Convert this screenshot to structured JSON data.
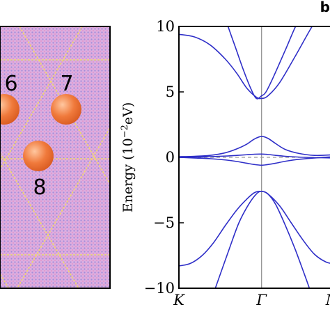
{
  "panel_label": "b",
  "lattice": {
    "site_labels": [
      "6",
      "7",
      "8"
    ],
    "colors": {
      "background": "#dcaee0",
      "grid": "#f2d86a",
      "atom": "#f07a3c",
      "atom_light": "#ffc7a0"
    }
  },
  "chart_data": {
    "type": "line",
    "ylabel": "Energy (10",
    "ylabel_exp": "−2",
    "ylabel_unit": "eV)",
    "ylim": [
      -10,
      10
    ],
    "yticks": [
      -10,
      -5,
      0,
      5,
      10
    ],
    "ytick_labels": [
      "−10",
      "−5",
      "0",
      "5",
      "10"
    ],
    "k_points": [
      {
        "label": "K",
        "pos": 0.0
      },
      {
        "label": "Γ",
        "pos": 0.427
      },
      {
        "label": "M",
        "pos": 0.797
      }
    ],
    "x_range": [
      0,
      1
    ],
    "reference_line": {
      "y": 0,
      "style": "dashed"
    },
    "line_color": "#2f2fc8",
    "series": [
      {
        "x": [
          0,
          0.08,
          0.16,
          0.24,
          0.3,
          0.35,
          0.4,
          0.427,
          0.46,
          0.52,
          0.6,
          0.68,
          0.75,
          0.797,
          0.85,
          0.92,
          1.0
        ],
        "y": [
          9.4,
          9.2,
          8.6,
          7.5,
          6.4,
          5.3,
          4.6,
          4.5,
          4.7,
          5.7,
          7.7,
          9.8,
          11.5,
          12.0,
          12.0,
          12.0,
          12.0
        ]
      },
      {
        "x": [
          0.16,
          0.22,
          0.28,
          0.33,
          0.37,
          0.4,
          0.427,
          0.45,
          0.49,
          0.55,
          0.62,
          0.7,
          0.75,
          0.797,
          0.85,
          0.92,
          1.0
        ],
        "y": [
          12.0,
          11.2,
          8.9,
          6.8,
          5.3,
          4.5,
          4.7,
          5.0,
          6.2,
          8.2,
          10.5,
          12.0,
          12.0,
          9.3,
          9.3,
          9.3,
          9.3
        ]
      },
      {
        "x": [
          0,
          0.08,
          0.16,
          0.24,
          0.3,
          0.35,
          0.39,
          0.427,
          0.46,
          0.5,
          0.55,
          0.62,
          0.7,
          0.797,
          0.85,
          0.92,
          1.0
        ],
        "y": [
          0.05,
          0.08,
          0.15,
          0.35,
          0.65,
          1.0,
          1.4,
          1.6,
          1.45,
          1.05,
          0.6,
          0.3,
          0.15,
          0.2,
          0.3,
          0.4,
          0.5
        ]
      },
      {
        "x": [
          0,
          0.08,
          0.16,
          0.24,
          0.3,
          0.35,
          0.39,
          0.427,
          0.46,
          0.5,
          0.55,
          0.62,
          0.7,
          0.797,
          0.85,
          0.92,
          1.0
        ],
        "y": [
          0.0,
          -0.05,
          -0.1,
          -0.2,
          -0.32,
          -0.45,
          -0.55,
          -0.6,
          -0.55,
          -0.45,
          -0.3,
          -0.15,
          -0.05,
          0.05,
          0.12,
          0.2,
          0.28
        ]
      },
      {
        "x": [
          0,
          0.08,
          0.16,
          0.24,
          0.3,
          0.35,
          0.39,
          0.427,
          0.46,
          0.5,
          0.55,
          0.62,
          0.7,
          0.797,
          0.85,
          0.92,
          1.0
        ],
        "y": [
          0.0,
          0.02,
          0.05,
          0.1,
          0.15,
          0.2,
          0.24,
          0.25,
          0.22,
          0.15,
          0.08,
          0.02,
          -0.02,
          -0.05,
          -0.1,
          -0.15,
          -0.2
        ]
      },
      {
        "x": [
          0,
          0.06,
          0.12,
          0.18,
          0.24,
          0.3,
          0.35,
          0.39,
          0.427,
          0.46,
          0.52,
          0.58,
          0.64,
          0.7,
          0.76,
          0.797,
          0.85,
          0.92,
          1.0
        ],
        "y": [
          -8.3,
          -8.1,
          -7.5,
          -6.5,
          -5.2,
          -4.0,
          -3.2,
          -2.7,
          -2.6,
          -2.8,
          -3.7,
          -5.0,
          -6.3,
          -7.4,
          -8.0,
          -8.1,
          -8.1,
          -8.1,
          -8.1
        ]
      },
      {
        "x": [
          0.14,
          0.2,
          0.26,
          0.31,
          0.36,
          0.4,
          0.427,
          0.46,
          0.5,
          0.55,
          0.6,
          0.65,
          0.7,
          0.74
        ],
        "y": [
          -12.0,
          -9.5,
          -7.0,
          -5.0,
          -3.6,
          -2.8,
          -2.6,
          -2.8,
          -3.6,
          -5.2,
          -7.0,
          -9.0,
          -11.0,
          -12.0
        ]
      }
    ]
  }
}
